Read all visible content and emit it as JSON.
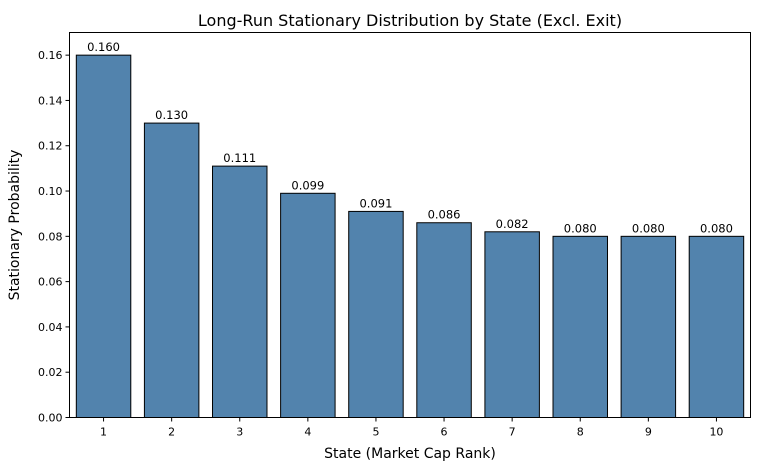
{
  "chart_data": {
    "type": "bar",
    "title": "Long-Run Stationary Distribution by State (Excl. Exit)",
    "xlabel": "State (Market Cap Rank)",
    "ylabel": "Stationary Probability",
    "categories": [
      "1",
      "2",
      "3",
      "4",
      "5",
      "6",
      "7",
      "8",
      "9",
      "10"
    ],
    "values": [
      0.16,
      0.13,
      0.111,
      0.099,
      0.091,
      0.086,
      0.082,
      0.08,
      0.08,
      0.08
    ],
    "data_labels": [
      "0.160",
      "0.130",
      "0.111",
      "0.099",
      "0.091",
      "0.086",
      "0.082",
      "0.080",
      "0.080",
      "0.080"
    ],
    "ylim": [
      0,
      0.17
    ],
    "yticks": [
      0.0,
      0.02,
      0.04,
      0.06,
      0.08,
      0.1,
      0.12,
      0.14,
      0.16
    ],
    "ytick_labels": [
      "0.00",
      "0.02",
      "0.04",
      "0.06",
      "0.08",
      "0.10",
      "0.12",
      "0.14",
      "0.16"
    ],
    "grid": false,
    "legend": "none",
    "bar_color": "#5283ad",
    "bar_edge_color": "#000000"
  }
}
